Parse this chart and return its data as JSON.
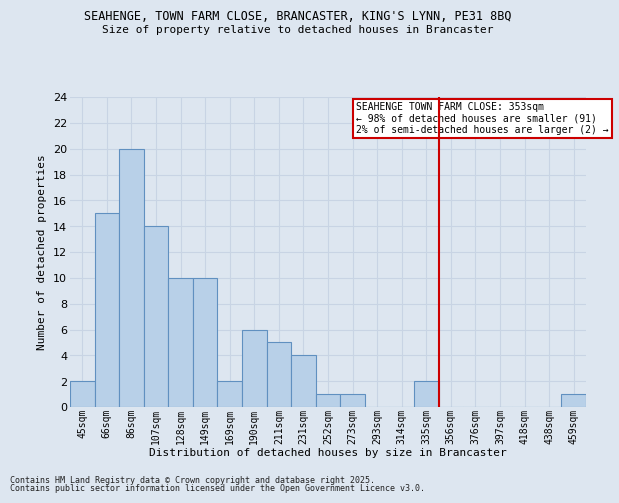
{
  "title_line1": "SEAHENGE, TOWN FARM CLOSE, BRANCASTER, KING'S LYNN, PE31 8BQ",
  "title_line2": "Size of property relative to detached houses in Brancaster",
  "xlabel": "Distribution of detached houses by size in Brancaster",
  "ylabel": "Number of detached properties",
  "bins": [
    "45sqm",
    "66sqm",
    "86sqm",
    "107sqm",
    "128sqm",
    "149sqm",
    "169sqm",
    "190sqm",
    "211sqm",
    "231sqm",
    "252sqm",
    "273sqm",
    "293sqm",
    "314sqm",
    "335sqm",
    "356sqm",
    "376sqm",
    "397sqm",
    "418sqm",
    "438sqm",
    "459sqm"
  ],
  "values": [
    2,
    15,
    20,
    14,
    10,
    10,
    2,
    6,
    5,
    4,
    1,
    1,
    0,
    0,
    2,
    0,
    0,
    0,
    0,
    0,
    1
  ],
  "bar_color": "#b8d0e8",
  "bar_edge_color": "#6090c0",
  "bg_color": "#dde6f0",
  "grid_color": "#c8d4e4",
  "red_line_index": 15,
  "ylim": [
    0,
    24
  ],
  "yticks": [
    0,
    2,
    4,
    6,
    8,
    10,
    12,
    14,
    16,
    18,
    20,
    22,
    24
  ],
  "annotation_title": "SEAHENGE TOWN FARM CLOSE: 353sqm",
  "annotation_line1": "← 98% of detached houses are smaller (91)",
  "annotation_line2": "2% of semi-detached houses are larger (2) →",
  "footer_line1": "Contains HM Land Registry data © Crown copyright and database right 2025.",
  "footer_line2": "Contains public sector information licensed under the Open Government Licence v3.0."
}
